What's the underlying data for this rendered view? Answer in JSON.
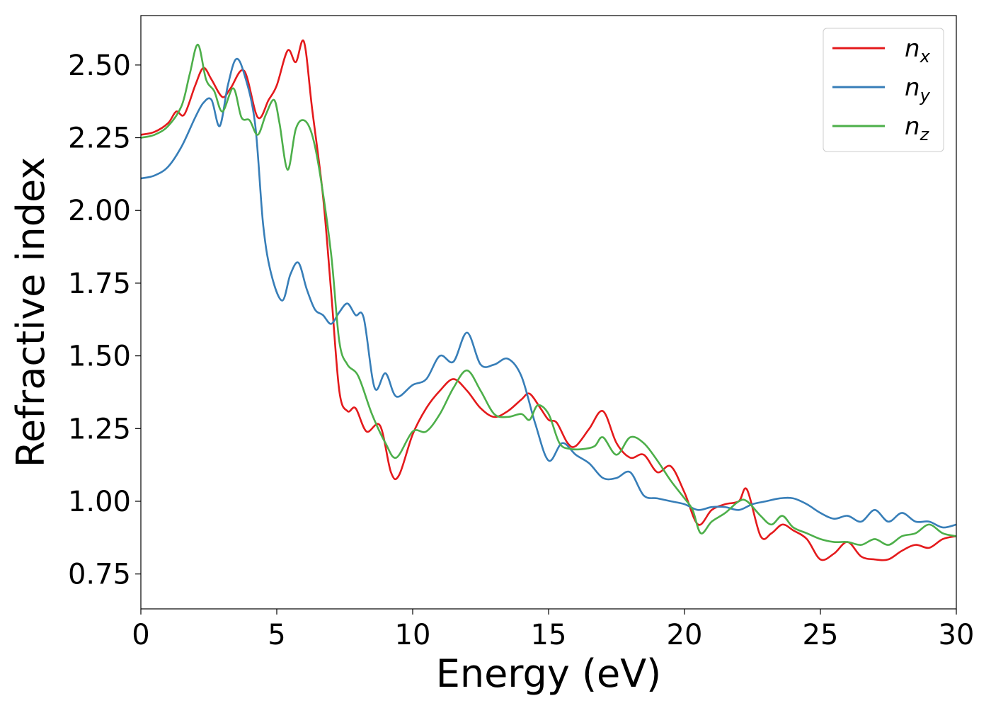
{
  "chart_data": {
    "type": "line",
    "title": "",
    "xlabel": "Energy (eV)",
    "ylabel": "Refractive index",
    "xlim": [
      0,
      30
    ],
    "ylim": [
      0.63,
      2.67
    ],
    "xticks": [
      0,
      5,
      10,
      15,
      20,
      25,
      30
    ],
    "xtick_labels": [
      "0",
      "5",
      "10",
      "15",
      "20",
      "25",
      "30"
    ],
    "yticks": [
      0.75,
      1.0,
      1.25,
      1.5,
      1.75,
      2.0,
      2.25,
      2.5
    ],
    "ytick_labels": [
      "0.75",
      "1.00",
      "1.25",
      "1.50",
      "1.75",
      "2.00",
      "2.25",
      "2.50"
    ],
    "grid": false,
    "legend_position": "top-right",
    "series": [
      {
        "name": "n",
        "subscript": "x",
        "color": "#e41a1c",
        "x": [
          0,
          0.5,
          1.0,
          1.3,
          1.6,
          2.0,
          2.3,
          2.6,
          3.0,
          3.3,
          3.8,
          4.3,
          4.7,
          5.0,
          5.4,
          5.7,
          6.0,
          6.3,
          6.7,
          7.0,
          7.3,
          7.6,
          7.9,
          8.3,
          8.8,
          9.2,
          9.5,
          10.0,
          10.5,
          11.0,
          11.5,
          12.0,
          12.5,
          13.0,
          13.5,
          14.0,
          14.3,
          14.7,
          15.0,
          15.3,
          15.7,
          16.0,
          16.5,
          17.0,
          17.5,
          18.0,
          18.5,
          19.0,
          19.5,
          20.0,
          20.5,
          21.0,
          21.5,
          22.0,
          22.3,
          22.8,
          23.2,
          23.6,
          24.0,
          24.5,
          25.0,
          25.5,
          26.0,
          26.5,
          27.0,
          27.5,
          28.0,
          28.5,
          29.0,
          29.5,
          30.0
        ],
        "y": [
          2.26,
          2.27,
          2.3,
          2.34,
          2.33,
          2.43,
          2.49,
          2.45,
          2.39,
          2.42,
          2.48,
          2.32,
          2.38,
          2.43,
          2.55,
          2.51,
          2.58,
          2.35,
          2.05,
          1.72,
          1.38,
          1.31,
          1.32,
          1.24,
          1.26,
          1.1,
          1.09,
          1.23,
          1.32,
          1.38,
          1.42,
          1.38,
          1.32,
          1.29,
          1.31,
          1.35,
          1.37,
          1.32,
          1.28,
          1.27,
          1.2,
          1.19,
          1.25,
          1.31,
          1.2,
          1.15,
          1.16,
          1.1,
          1.12,
          1.03,
          0.92,
          0.97,
          0.99,
          1.0,
          1.04,
          0.88,
          0.89,
          0.92,
          0.9,
          0.87,
          0.8,
          0.82,
          0.86,
          0.81,
          0.8,
          0.8,
          0.83,
          0.85,
          0.84,
          0.87,
          0.88
        ]
      },
      {
        "name": "n",
        "subscript": "y",
        "color": "#377eb8",
        "x": [
          0,
          0.5,
          1.0,
          1.5,
          2.0,
          2.3,
          2.6,
          2.9,
          3.2,
          3.5,
          3.8,
          4.2,
          4.5,
          4.8,
          5.2,
          5.5,
          5.8,
          6.1,
          6.4,
          6.7,
          7.0,
          7.3,
          7.6,
          7.9,
          8.2,
          8.6,
          9.0,
          9.4,
          10.0,
          10.5,
          11.0,
          11.5,
          12.0,
          12.5,
          13.0,
          13.5,
          14.0,
          14.5,
          15.0,
          15.5,
          16.0,
          16.5,
          17.0,
          17.5,
          18.0,
          18.5,
          19.0,
          19.5,
          20.0,
          20.5,
          21.0,
          21.5,
          22.0,
          22.5,
          23.0,
          23.5,
          24.0,
          24.5,
          25.0,
          25.5,
          26.0,
          26.5,
          27.0,
          27.5,
          28.0,
          28.5,
          29.0,
          29.5,
          30.0
        ],
        "y": [
          2.11,
          2.12,
          2.15,
          2.22,
          2.32,
          2.37,
          2.38,
          2.29,
          2.43,
          2.52,
          2.47,
          2.3,
          1.95,
          1.78,
          1.69,
          1.78,
          1.82,
          1.73,
          1.66,
          1.64,
          1.61,
          1.65,
          1.68,
          1.64,
          1.63,
          1.39,
          1.44,
          1.36,
          1.4,
          1.42,
          1.5,
          1.48,
          1.58,
          1.47,
          1.47,
          1.49,
          1.43,
          1.27,
          1.14,
          1.2,
          1.16,
          1.13,
          1.08,
          1.08,
          1.1,
          1.02,
          1.01,
          1.0,
          0.99,
          0.97,
          0.98,
          0.98,
          0.97,
          0.99,
          1.0,
          1.01,
          1.01,
          0.99,
          0.96,
          0.94,
          0.95,
          0.93,
          0.97,
          0.93,
          0.96,
          0.93,
          0.93,
          0.91,
          0.92
        ]
      },
      {
        "name": "n",
        "subscript": "z",
        "color": "#4daf4a",
        "x": [
          0,
          0.5,
          1.0,
          1.5,
          1.8,
          2.1,
          2.4,
          2.7,
          3.0,
          3.4,
          3.7,
          4.0,
          4.3,
          4.6,
          4.9,
          5.1,
          5.4,
          5.7,
          6.0,
          6.3,
          6.6,
          7.0,
          7.3,
          7.6,
          8.0,
          8.5,
          9.0,
          9.4,
          10.0,
          10.5,
          11.0,
          11.5,
          12.0,
          12.5,
          13.0,
          13.5,
          14.0,
          14.3,
          14.6,
          15.0,
          15.4,
          15.8,
          16.3,
          16.7,
          17.0,
          17.5,
          18.0,
          18.5,
          19.0,
          19.5,
          20.0,
          20.3,
          20.6,
          21.0,
          21.5,
          22.0,
          22.3,
          22.8,
          23.2,
          23.6,
          24.0,
          24.5,
          25.0,
          25.5,
          26.0,
          26.5,
          27.0,
          27.5,
          28.0,
          28.5,
          29.0,
          29.5,
          30.0
        ],
        "y": [
          2.25,
          2.26,
          2.29,
          2.36,
          2.47,
          2.57,
          2.45,
          2.41,
          2.34,
          2.42,
          2.32,
          2.31,
          2.26,
          2.33,
          2.38,
          2.3,
          2.14,
          2.28,
          2.31,
          2.26,
          2.12,
          1.85,
          1.55,
          1.47,
          1.43,
          1.3,
          1.2,
          1.15,
          1.24,
          1.24,
          1.3,
          1.39,
          1.45,
          1.38,
          1.3,
          1.29,
          1.3,
          1.28,
          1.33,
          1.3,
          1.2,
          1.18,
          1.18,
          1.19,
          1.22,
          1.16,
          1.22,
          1.2,
          1.14,
          1.07,
          1.01,
          0.97,
          0.89,
          0.93,
          0.96,
          1.0,
          1.0,
          0.95,
          0.92,
          0.95,
          0.91,
          0.89,
          0.87,
          0.86,
          0.86,
          0.85,
          0.87,
          0.85,
          0.88,
          0.89,
          0.92,
          0.89,
          0.88
        ]
      }
    ]
  }
}
